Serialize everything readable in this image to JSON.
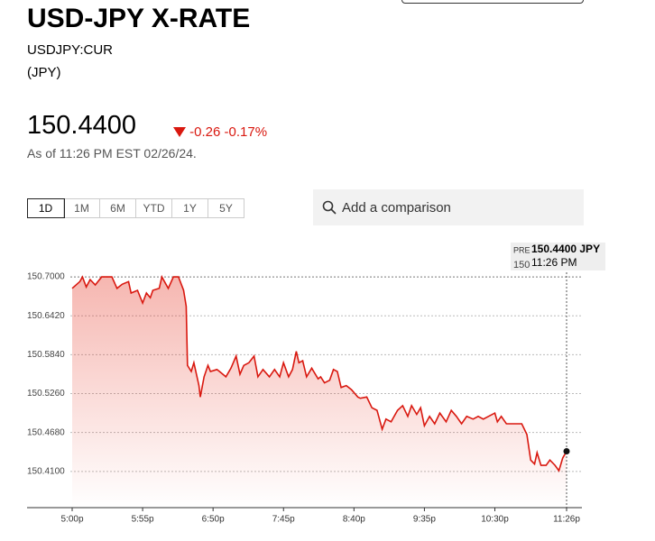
{
  "header": {
    "title": "USD-JPY X-RATE",
    "ticker": "USDJPY:CUR",
    "currency": "(JPY)",
    "price": "150.4400",
    "change": "-0.26",
    "change_pct": "-0.17%",
    "as_of": "As of 11:26 PM EST 02/26/24."
  },
  "range_buttons": [
    "1D",
    "1M",
    "6M",
    "YTD",
    "1Y",
    "5Y"
  ],
  "comparison": "Add a comparison",
  "tooltip": {
    "session": "PRE",
    "price": "150.4400 JPY",
    "clipped_tick": "150",
    "time": "11:26 PM"
  },
  "chart_data": {
    "type": "area",
    "color": "#d9180f",
    "x": [
      "5:00p",
      "5:06p",
      "5:08p",
      "5:11p",
      "5:14p",
      "5:18p",
      "5:23p",
      "5:27p",
      "5:31p",
      "5:35p",
      "5:39p",
      "5:44p",
      "5:46p",
      "5:51p",
      "5:55p",
      "5:58p",
      "6:01p",
      "6:03p",
      "6:08p",
      "6:10p",
      "6:15p",
      "6:19p",
      "6:23p",
      "6:27p",
      "6:29p",
      "6:30p",
      "6:33p",
      "6:35p",
      "6:39p",
      "6:40p",
      "6:43p",
      "6:46p",
      "6:48p",
      "6:53p",
      "6:55p",
      "7:00p",
      "7:04p",
      "7:08p",
      "7:11p",
      "7:14p",
      "7:18p",
      "7:22p",
      "7:25p",
      "7:29p",
      "7:34p",
      "7:38p",
      "7:42p",
      "7:45p",
      "7:49p",
      "7:52p",
      "7:55p",
      "7:57p",
      "8:00p",
      "8:03p",
      "8:07p",
      "8:12p",
      "8:14p",
      "8:17p",
      "8:21p",
      "8:24p",
      "8:27p",
      "8:30p",
      "8:34p",
      "8:38p",
      "8:43p",
      "8:45p",
      "8:50p",
      "8:54p",
      "8:58p",
      "9:02p",
      "9:05p",
      "9:09p",
      "9:14p",
      "9:18p",
      "9:22p",
      "9:25p",
      "9:29p",
      "9:32p",
      "9:35p",
      "9:39p",
      "9:43p",
      "9:47p",
      "9:52p",
      "9:56p",
      "10:00p",
      "10:04p",
      "10:08p",
      "10:13p",
      "10:17p",
      "10:21p",
      "10:25p",
      "10:30p",
      "10:32p",
      "10:35p",
      "10:39p",
      "10:45p",
      "10:51p",
      "10:55p",
      "10:58p",
      "11:01p",
      "11:03p",
      "11:06p",
      "11:10p",
      "11:13p",
      "11:17p",
      "11:20p",
      "11:23p",
      "11:26p"
    ],
    "values": [
      150.683,
      150.693,
      150.7,
      150.685,
      150.696,
      150.688,
      150.7,
      150.7,
      150.7,
      150.683,
      150.689,
      150.693,
      150.676,
      150.68,
      150.661,
      150.676,
      150.669,
      150.68,
      150.683,
      150.7,
      150.683,
      150.7,
      150.7,
      150.68,
      150.656,
      150.568,
      150.559,
      150.572,
      150.538,
      150.521,
      150.551,
      150.568,
      150.559,
      150.562,
      150.559,
      150.551,
      150.564,
      150.582,
      150.555,
      150.568,
      150.572,
      150.582,
      150.551,
      150.562,
      150.551,
      150.562,
      150.551,
      150.572,
      150.551,
      150.562,
      150.589,
      150.572,
      150.575,
      150.551,
      150.564,
      150.548,
      150.551,
      150.542,
      150.546,
      150.562,
      150.559,
      150.535,
      150.538,
      150.532,
      150.521,
      150.519,
      150.521,
      150.505,
      150.501,
      150.473,
      150.488,
      150.484,
      150.501,
      150.508,
      150.492,
      150.508,
      150.495,
      150.505,
      150.478,
      150.492,
      150.481,
      150.497,
      150.484,
      150.501,
      150.492,
      150.481,
      150.492,
      150.488,
      150.492,
      150.488,
      150.492,
      150.497,
      150.484,
      150.492,
      150.481,
      150.481,
      150.481,
      150.465,
      150.427,
      150.421,
      150.438,
      150.419,
      150.419,
      150.427,
      150.419,
      150.411,
      150.43,
      150.44
    ],
    "ylim": [
      150.356,
      150.723
    ],
    "yticks": [
      {
        "value": 150.41,
        "label": "150.4100"
      },
      {
        "value": 150.468,
        "label": "150.4680"
      },
      {
        "value": 150.526,
        "label": "150.5260"
      },
      {
        "value": 150.584,
        "label": "150.5840"
      },
      {
        "value": 150.642,
        "label": "150.6420"
      },
      {
        "value": 150.7,
        "label": "150.7000"
      }
    ],
    "xticks": [
      "5:00p",
      "5:55p",
      "6:50p",
      "7:45p",
      "8:40p",
      "9:35p",
      "10:30p",
      "11:26p"
    ],
    "grid": true
  }
}
